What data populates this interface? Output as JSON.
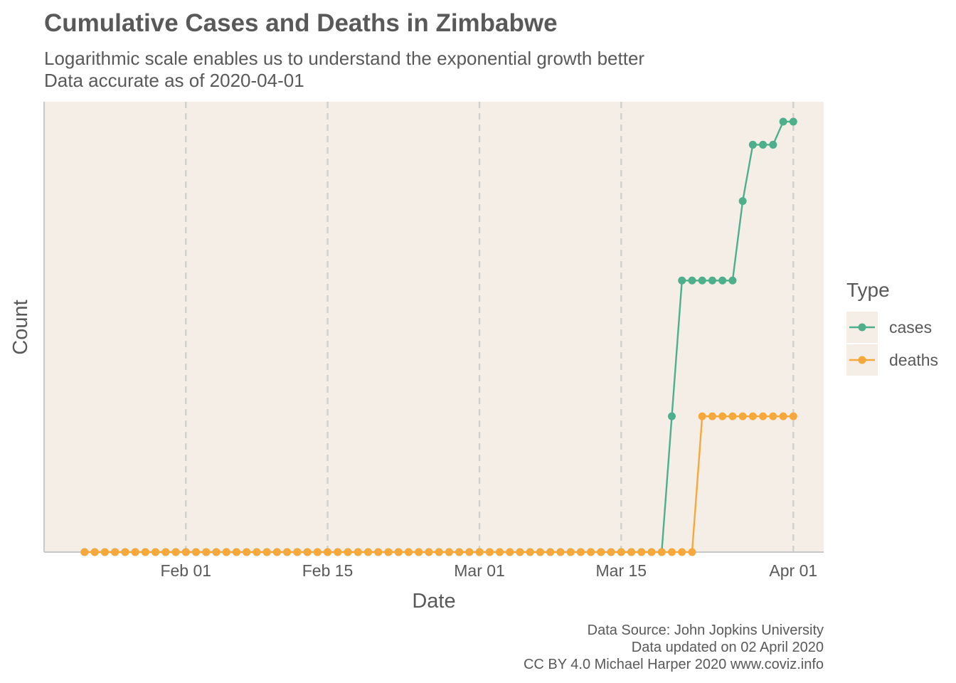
{
  "chart_data": {
    "type": "line",
    "title": "Cumulative Cases and Deaths in Zimbabwe",
    "subtitle_lines": [
      "Logarithmic scale enables us to understand the exponential growth better",
      "Data accurate as of 2020-04-01"
    ],
    "xlabel": "Date",
    "ylabel": "Count",
    "y_scale": "log1p",
    "y_tick_labels_shown": false,
    "xlim": [
      "2020-01-18",
      "2020-04-04"
    ],
    "x_ticks": [
      "2020-02-01",
      "2020-02-15",
      "2020-03-01",
      "2020-03-15",
      "2020-04-01"
    ],
    "x_tick_labels": [
      "Feb 01",
      "Feb 15",
      "Mar 01",
      "Mar 15",
      "Apr 01"
    ],
    "grid": "vertical dashed at major x ticks",
    "legend": {
      "title": "Type",
      "placement": "right"
    },
    "series": [
      {
        "name": "cases",
        "color": "#4daf8c",
        "points": [
          [
            "2020-01-22",
            0
          ],
          [
            "2020-03-19",
            0
          ],
          [
            "2020-03-20",
            1
          ],
          [
            "2020-03-21",
            3
          ],
          [
            "2020-03-26",
            3
          ],
          [
            "2020-03-27",
            5
          ],
          [
            "2020-03-28",
            7
          ],
          [
            "2020-03-30",
            7
          ],
          [
            "2020-03-31",
            8
          ],
          [
            "2020-04-01",
            8
          ]
        ]
      },
      {
        "name": "deaths",
        "color": "#f7a83b",
        "points": [
          [
            "2020-01-22",
            0
          ],
          [
            "2020-03-22",
            0
          ],
          [
            "2020-03-23",
            1
          ],
          [
            "2020-04-01",
            1
          ]
        ]
      }
    ],
    "caption_lines": [
      "Data Source: John Jopkins University",
      "Data updated on 02 April 2020",
      "CC BY 4.0 Michael Harper 2020 www.coviz.info"
    ],
    "colors": {
      "panel_background": "#f4eee6",
      "grid": "#d0d0cc",
      "axis": "#c8c8c8",
      "text": "#595959"
    }
  }
}
